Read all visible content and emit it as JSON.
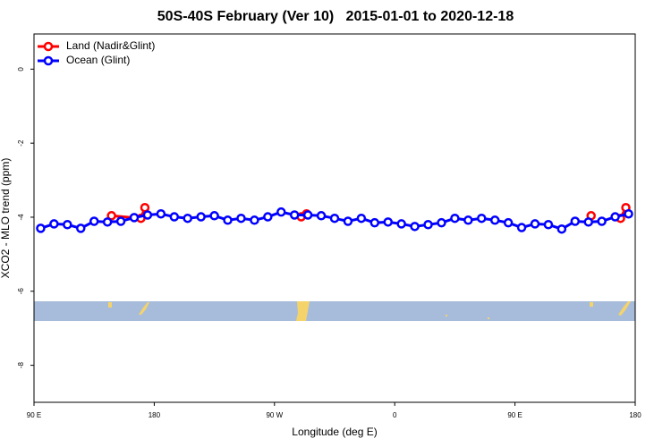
{
  "chart_data": {
    "type": "line",
    "title": "50S-40S February (Ver 10)   2015-01-01 to 2020-12-18",
    "xlabel": "Longitude (deg E)",
    "ylabel": "XCO2 - MLO trend (ppm)",
    "xlim": [
      90,
      540
    ],
    "ylim": [
      -9,
      0.95
    ],
    "xticks": [
      {
        "value": 90,
        "label": "90 E"
      },
      {
        "value": 180,
        "label": "180"
      },
      {
        "value": 270,
        "label": "90 W"
      },
      {
        "value": 360,
        "label": "0"
      },
      {
        "value": 450,
        "label": "90 E"
      },
      {
        "value": 540,
        "label": "180"
      }
    ],
    "yticks": [
      0,
      -2,
      -4,
      -6,
      -8
    ],
    "legend": "top-left",
    "series": [
      {
        "name": "Land (Nadir&Glint)",
        "color": "#ff0000",
        "x": [
          148,
          170,
          173,
          null,
          290,
          294,
          null,
          507,
          null,
          529,
          533
        ],
        "values": [
          -3.96,
          -4.03,
          -3.74,
          null,
          -3.99,
          -3.91,
          null,
          -3.96,
          null,
          -4.03,
          -3.74
        ]
      },
      {
        "name": "Ocean (Glint)",
        "color": "#0000ff",
        "x": [
          95,
          105,
          115,
          125,
          135,
          145,
          155,
          165,
          175,
          185,
          195,
          205,
          215,
          225,
          235,
          245,
          255,
          265,
          275,
          285,
          295,
          305,
          315,
          325,
          335,
          345,
          355,
          365,
          375,
          385,
          395,
          405,
          415,
          425,
          435,
          445,
          455,
          465,
          475,
          485,
          495,
          505,
          515,
          525,
          535
        ],
        "values": [
          -4.3,
          -4.18,
          -4.2,
          -4.3,
          -4.11,
          -4.13,
          -4.11,
          -4.01,
          -3.94,
          -3.91,
          -3.99,
          -4.03,
          -3.99,
          -3.96,
          -4.08,
          -4.03,
          -4.08,
          -3.99,
          -3.86,
          -3.94,
          -3.94,
          -3.96,
          -4.03,
          -4.11,
          -4.03,
          -4.15,
          -4.13,
          -4.18,
          -4.25,
          -4.2,
          -4.15,
          -4.03,
          -4.08,
          -4.03,
          -4.08,
          -4.15,
          -4.28,
          -4.18,
          -4.2,
          -4.32,
          -4.11,
          -4.13,
          -4.11,
          -3.99,
          -3.91
        ]
      }
    ]
  }
}
